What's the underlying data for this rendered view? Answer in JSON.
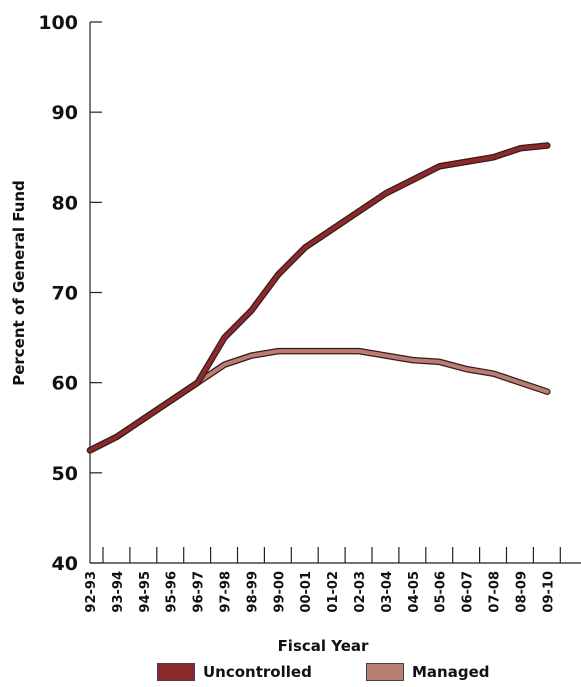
{
  "chart_data": {
    "type": "line",
    "xlabel": "Fiscal Year",
    "ylabel": "Percent of General Fund",
    "ylim": [
      40,
      100
    ],
    "yticks": [
      40,
      50,
      60,
      70,
      80,
      90,
      100
    ],
    "categories": [
      "92-93",
      "93-94",
      "94-95",
      "95-96",
      "96-97",
      "97-98",
      "98-99",
      "99-00",
      "00-01",
      "01-02",
      "02-03",
      "03-04",
      "04-05",
      "05-06",
      "06-07",
      "07-08",
      "08-09",
      "09-10"
    ],
    "series": [
      {
        "name": "Uncontrolled",
        "color": "#8b2a2c",
        "values": [
          52.5,
          54,
          56,
          58,
          60,
          65,
          68,
          72,
          75,
          77,
          79,
          81,
          82.5,
          84,
          84.5,
          85,
          86,
          86.3
        ]
      },
      {
        "name": "Managed",
        "color": "#b97d74",
        "values": [
          52.5,
          54,
          56,
          58,
          60,
          62,
          63,
          63.5,
          63.5,
          63.5,
          63.5,
          63,
          62.5,
          62.3,
          61.5,
          61,
          60,
          59
        ]
      }
    ],
    "legend_position": "bottom",
    "grid": false
  }
}
